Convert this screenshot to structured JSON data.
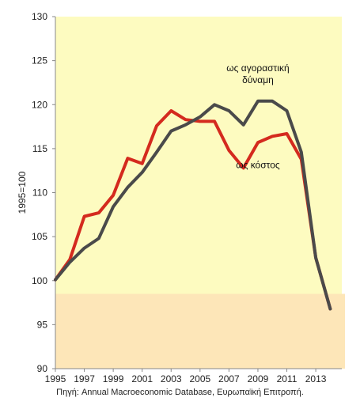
{
  "chart_data": {
    "type": "line",
    "ylabel": "1995=100",
    "xlabel": "",
    "xlim": [
      1995,
      2014.8
    ],
    "ylim": [
      90,
      130
    ],
    "yticks": [
      90,
      95,
      100,
      105,
      110,
      115,
      120,
      125,
      130
    ],
    "xticks": [
      1995,
      1997,
      1999,
      2001,
      2003,
      2005,
      2007,
      2009,
      2011,
      2013
    ],
    "shaded_band": {
      "from": 90,
      "to": 98.5
    },
    "grid": false,
    "colors": {
      "plot_background": "#fdfbc0",
      "shaded_band": "#fde6b8",
      "purchasing_power": "#4a4a4a",
      "cost": "#d42a1e"
    },
    "series": [
      {
        "name": "ως αγοραστική δύναμη",
        "x": [
          1995,
          1996,
          1997,
          1998,
          1999,
          2000,
          2001,
          2002,
          2003,
          2004,
          2005,
          2006,
          2007,
          2008,
          2009,
          2010,
          2011,
          2012,
          2013,
          2014
        ],
        "values": [
          100.1,
          102.1,
          103.7,
          104.8,
          108.4,
          110.6,
          112.3,
          114.6,
          117.0,
          117.7,
          118.6,
          120.0,
          119.3,
          117.7,
          120.4,
          120.4,
          119.3,
          114.6,
          102.6,
          96.8
        ]
      },
      {
        "name": "ως κόστος",
        "x": [
          1995,
          1996,
          1997,
          1998,
          1999,
          2000,
          2001,
          2002,
          2003,
          2004,
          2005,
          2006,
          2007,
          2008,
          2009,
          2010,
          2011,
          2012,
          2013,
          2014
        ],
        "values": [
          100.1,
          102.4,
          107.3,
          107.7,
          109.7,
          113.9,
          113.3,
          117.6,
          119.3,
          118.3,
          118.1,
          118.1,
          114.8,
          112.8,
          115.7,
          116.4,
          116.7,
          113.8,
          102.6,
          96.8
        ]
      }
    ],
    "annotations": [
      {
        "lines": [
          "ως αγοραστική",
          "δύναμη"
        ],
        "x": 2009,
        "y": 123.8
      },
      {
        "lines": [
          "ως κόστος"
        ],
        "x": 2009,
        "y": 112.8
      }
    ]
  },
  "source": "Πηγή: Annual Macroeconomic Database, Ευρωπαϊκή Επιτροπή."
}
